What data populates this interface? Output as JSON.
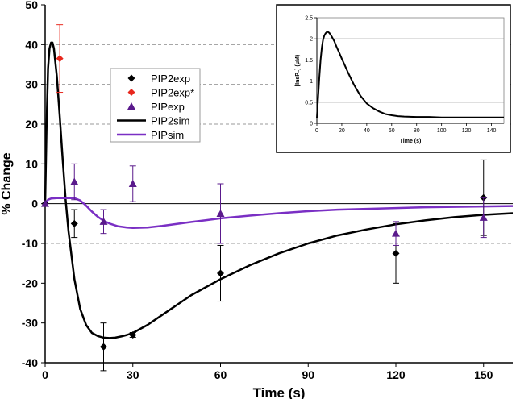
{
  "chart_data": [
    {
      "type": "scatter",
      "xlabel": "Time (s)",
      "ylabel": "% Change",
      "xlim": [
        0,
        160
      ],
      "ylim": [
        -40,
        50
      ],
      "x_ticks": [
        0,
        30,
        60,
        90,
        120,
        150
      ],
      "y_ticks": [
        -40,
        -30,
        -20,
        -10,
        0,
        10,
        20,
        30,
        40,
        50
      ],
      "grid": "horizontal dashed at -10, 20, 30, 40",
      "legend_position": "upper-center-left",
      "series": [
        {
          "name": "PIP2exp",
          "kind": "points",
          "marker": "diamond",
          "color": "#000000",
          "points": [
            {
              "x": 0,
              "y": 0,
              "err": 0
            },
            {
              "x": 10,
              "y": -5,
              "err": 3.5
            },
            {
              "x": 20,
              "y": -36,
              "err": 6
            },
            {
              "x": 30,
              "y": -33,
              "err": 0.6
            },
            {
              "x": 60,
              "y": -17.5,
              "err": 7
            },
            {
              "x": 120,
              "y": -12.5,
              "err": 7.5
            },
            {
              "x": 150,
              "y": 1.5,
              "err": 9.5
            }
          ]
        },
        {
          "name": "PIP2exp*",
          "kind": "points",
          "marker": "diamond",
          "color": "#e8281e",
          "points": [
            {
              "x": 5,
              "y": 36.5,
              "err": 8.5
            }
          ]
        },
        {
          "name": "PIPexp",
          "kind": "points",
          "marker": "triangle",
          "color": "#5a1a8c",
          "points": [
            {
              "x": 0,
              "y": 0,
              "err": 0
            },
            {
              "x": 10,
              "y": 5.5,
              "err": 4.5
            },
            {
              "x": 20,
              "y": -4.5,
              "err": 3
            },
            {
              "x": 30,
              "y": 5,
              "err": 4.5
            },
            {
              "x": 60,
              "y": -2.5,
              "err": 7.5
            },
            {
              "x": 120,
              "y": -7.5,
              "err": 3
            },
            {
              "x": 150,
              "y": -3.5,
              "err": 5
            }
          ]
        },
        {
          "name": "PIP2sim",
          "kind": "line",
          "color": "#000000",
          "x": [
            0,
            0.5,
            1,
            1.5,
            2,
            2.5,
            3,
            4,
            5,
            6,
            7,
            8,
            10,
            12,
            14,
            16,
            18,
            20,
            22,
            24,
            26,
            28,
            30,
            35,
            40,
            45,
            50,
            60,
            70,
            80,
            90,
            100,
            110,
            120,
            130,
            140,
            150,
            160
          ],
          "y": [
            0,
            20,
            34,
            39,
            40.5,
            40.5,
            39,
            32,
            22,
            11,
            1,
            -7,
            -19,
            -26.5,
            -30.5,
            -32.5,
            -33.3,
            -33.7,
            -33.8,
            -33.7,
            -33.4,
            -33,
            -32.5,
            -30.5,
            -28,
            -25.5,
            -23,
            -19,
            -15.5,
            -12.5,
            -10,
            -8,
            -6.5,
            -5.2,
            -4.2,
            -3.4,
            -2.8,
            -2.4
          ]
        },
        {
          "name": "PIPsim",
          "kind": "line",
          "color": "#7a2fc4",
          "x": [
            0,
            1,
            2,
            4,
            6,
            8,
            10,
            12,
            14,
            16,
            18,
            20,
            22,
            25,
            28,
            30,
            35,
            40,
            50,
            60,
            70,
            80,
            90,
            100,
            110,
            120,
            130,
            140,
            150,
            160
          ],
          "y": [
            0,
            1,
            1.3,
            1.4,
            1.4,
            1.4,
            1.4,
            0.8,
            -0.5,
            -2,
            -3.3,
            -4.3,
            -5,
            -5.7,
            -6,
            -6.1,
            -6,
            -5.6,
            -4.6,
            -3.7,
            -3,
            -2.4,
            -1.9,
            -1.5,
            -1.3,
            -1.1,
            -0.9,
            -0.8,
            -0.7,
            -0.6
          ]
        }
      ]
    },
    {
      "type": "line",
      "inset": true,
      "xlabel": "Time (s)",
      "ylabel": "[InsP₃] (μM)",
      "xlim": [
        0,
        150
      ],
      "ylim": [
        0,
        2.5
      ],
      "x_ticks": [
        0,
        20,
        40,
        60,
        80,
        100,
        120,
        140
      ],
      "y_ticks": [
        0,
        0.5,
        1,
        1.5,
        2,
        2.5
      ],
      "grid": "horizontal solid at 0.5, 1, 1.5, 2",
      "series": [
        {
          "color": "#000000",
          "x": [
            0,
            1,
            2,
            3,
            4,
            5,
            6,
            7,
            8,
            9,
            10,
            11,
            12,
            14,
            16,
            18,
            20,
            22,
            25,
            28,
            30,
            35,
            40,
            45,
            50,
            55,
            60,
            65,
            70,
            80,
            90,
            100,
            110,
            120,
            130,
            140,
            150
          ],
          "y": [
            0.12,
            0.6,
            1.1,
            1.5,
            1.8,
            1.98,
            2.08,
            2.13,
            2.16,
            2.16,
            2.14,
            2.1,
            2.05,
            1.94,
            1.8,
            1.67,
            1.53,
            1.4,
            1.2,
            1.02,
            0.9,
            0.65,
            0.47,
            0.36,
            0.28,
            0.22,
            0.19,
            0.17,
            0.16,
            0.15,
            0.15,
            0.14,
            0.14,
            0.14,
            0.14,
            0.14,
            0.14
          ]
        }
      ]
    }
  ]
}
